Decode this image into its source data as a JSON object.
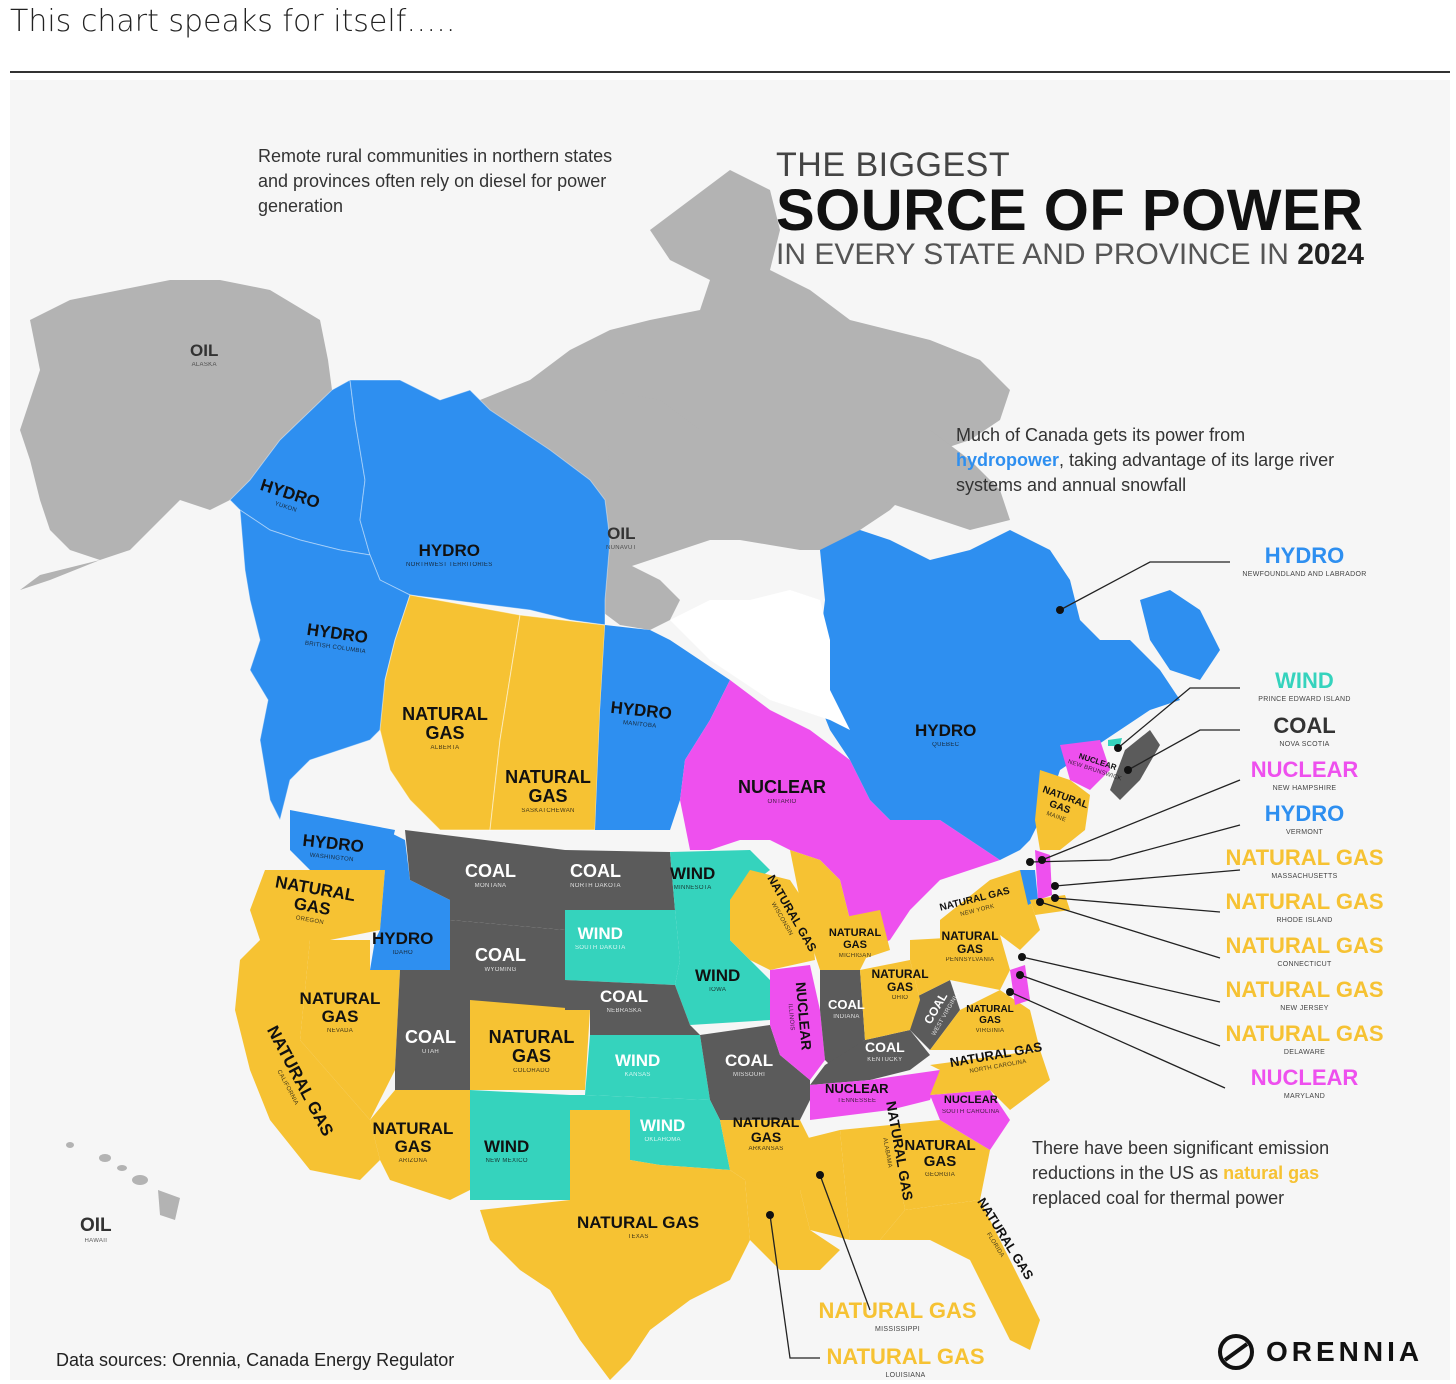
{
  "post": {
    "caption": "This chart speaks for itself….."
  },
  "title": {
    "line1": "THE BIGGEST",
    "line2": "SOURCE OF POWER",
    "line3": "IN EVERY STATE AND PROVINCE IN",
    "year": "2024"
  },
  "notes": {
    "remote": "Remote rural communities in northern states and provinces often rely on diesel for power generation",
    "canada_a": "Much of Canada gets its power from",
    "canada_b": "hydropower",
    "canada_c": ", taking advantage of its large river systems and annual snowfall",
    "us_a": "There have been significant emission reductions in the US as",
    "us_b": "natural gas",
    "us_c": "replaced coal for thermal power"
  },
  "colors": {
    "hydro": "#2e8ff0",
    "natural_gas": "#f6c233",
    "coal": "#5b5b5b",
    "wind": "#35d3bd",
    "nuclear": "#ee50ee",
    "oil": "#b3b3b3"
  },
  "regions": [
    {
      "source": "OIL",
      "name": "ALASKA"
    },
    {
      "source": "HYDRO",
      "name": "YUKON"
    },
    {
      "source": "HYDRO",
      "name": "NORTHWEST TERRITORIES"
    },
    {
      "source": "OIL",
      "name": "NUNAVUT"
    },
    {
      "source": "HYDRO",
      "name": "BRITISH COLUMBIA"
    },
    {
      "source": "NATURAL GAS",
      "name": "ALBERTA"
    },
    {
      "source": "NATURAL GAS",
      "name": "SASKATCHEWAN"
    },
    {
      "source": "HYDRO",
      "name": "MANITOBA"
    },
    {
      "source": "NUCLEAR",
      "name": "ONTARIO"
    },
    {
      "source": "HYDRO",
      "name": "QUEBEC"
    },
    {
      "source": "HYDRO",
      "name": "WASHINGTON"
    },
    {
      "source": "NATURAL GAS",
      "name": "OREGON"
    },
    {
      "source": "HYDRO",
      "name": "IDAHO"
    },
    {
      "source": "COAL",
      "name": "MONTANA"
    },
    {
      "source": "COAL",
      "name": "NORTH DAKOTA"
    },
    {
      "source": "WIND",
      "name": "MINNESOTA"
    },
    {
      "source": "WIND",
      "name": "SOUTH DAKOTA"
    },
    {
      "source": "COAL",
      "name": "WYOMING"
    },
    {
      "source": "NATURAL GAS",
      "name": "CALIFORNIA"
    },
    {
      "source": "NATURAL GAS",
      "name": "NEVADA"
    },
    {
      "source": "COAL",
      "name": "UTAH"
    },
    {
      "source": "NATURAL GAS",
      "name": "COLORADO"
    },
    {
      "source": "COAL",
      "name": "NEBRASKA"
    },
    {
      "source": "WIND",
      "name": "IOWA"
    },
    {
      "source": "WIND",
      "name": "KANSAS"
    },
    {
      "source": "COAL",
      "name": "MISSOURI"
    },
    {
      "source": "NATURAL GAS",
      "name": "ARIZONA"
    },
    {
      "source": "WIND",
      "name": "NEW MEXICO"
    },
    {
      "source": "WIND",
      "name": "OKLAHOMA"
    },
    {
      "source": "NATURAL GAS",
      "name": "TEXAS"
    },
    {
      "source": "NATURAL GAS",
      "name": "ARKANSAS"
    },
    {
      "source": "NATURAL GAS",
      "name": "ALABAMA"
    },
    {
      "source": "NATURAL GAS",
      "name": "GEORGIA"
    },
    {
      "source": "NATURAL GAS",
      "name": "FLORIDA"
    },
    {
      "source": "NUCLEAR",
      "name": "ILLINOIS"
    },
    {
      "source": "COAL",
      "name": "INDIANA"
    },
    {
      "source": "COAL",
      "name": "KENTUCKY"
    },
    {
      "source": "NUCLEAR",
      "name": "TENNESSEE"
    },
    {
      "source": "NUCLEAR",
      "name": "SOUTH CAROLINA"
    },
    {
      "source": "NATURAL GAS",
      "name": "NORTH CAROLINA"
    },
    {
      "source": "NATURAL GAS",
      "name": "VIRGINIA"
    },
    {
      "source": "COAL",
      "name": "WEST VIRGINIA"
    },
    {
      "source": "NATURAL GAS",
      "name": "OHIO"
    },
    {
      "source": "NATURAL GAS",
      "name": "PENNSYLVANIA"
    },
    {
      "source": "NATURAL GAS",
      "name": "NEW YORK"
    },
    {
      "source": "NATURAL GAS",
      "name": "WISCONSIN"
    },
    {
      "source": "NATURAL GAS",
      "name": "MICHIGAN"
    },
    {
      "source": "NATURAL GAS",
      "name": "MAINE"
    },
    {
      "source": "NUCLEAR",
      "name": "NEW BRUNSWICK"
    },
    {
      "source": "OIL",
      "name": "HAWAII"
    }
  ],
  "callouts": [
    {
      "source": "HYDRO",
      "name": "NEWFOUNDLAND AND LABRADOR",
      "color": "#2e8ff0"
    },
    {
      "source": "WIND",
      "name": "PRINCE EDWARD ISLAND",
      "color": "#35d3bd"
    },
    {
      "source": "COAL",
      "name": "NOVA SCOTIA",
      "color": "#333333"
    },
    {
      "source": "NUCLEAR",
      "name": "NEW HAMPSHIRE",
      "color": "#ee50ee"
    },
    {
      "source": "HYDRO",
      "name": "VERMONT",
      "color": "#2e8ff0"
    },
    {
      "source": "NATURAL GAS",
      "name": "MASSACHUSETTS",
      "color": "#f6c233"
    },
    {
      "source": "NATURAL GAS",
      "name": "RHODE ISLAND",
      "color": "#f6c233"
    },
    {
      "source": "NATURAL GAS",
      "name": "CONNECTICUT",
      "color": "#f6c233"
    },
    {
      "source": "NATURAL GAS",
      "name": "NEW JERSEY",
      "color": "#f6c233"
    },
    {
      "source": "NATURAL GAS",
      "name": "DELAWARE",
      "color": "#f6c233"
    },
    {
      "source": "NUCLEAR",
      "name": "MARYLAND",
      "color": "#ee50ee"
    }
  ],
  "south_callouts": [
    {
      "source": "NATURAL GAS",
      "name": "MISSISSIPPI"
    },
    {
      "source": "NATURAL GAS",
      "name": "LOUISIANA"
    }
  ],
  "footer": {
    "source": "Data sources: Orennia, Canada Energy Regulator",
    "brand": "ORENNIA"
  }
}
